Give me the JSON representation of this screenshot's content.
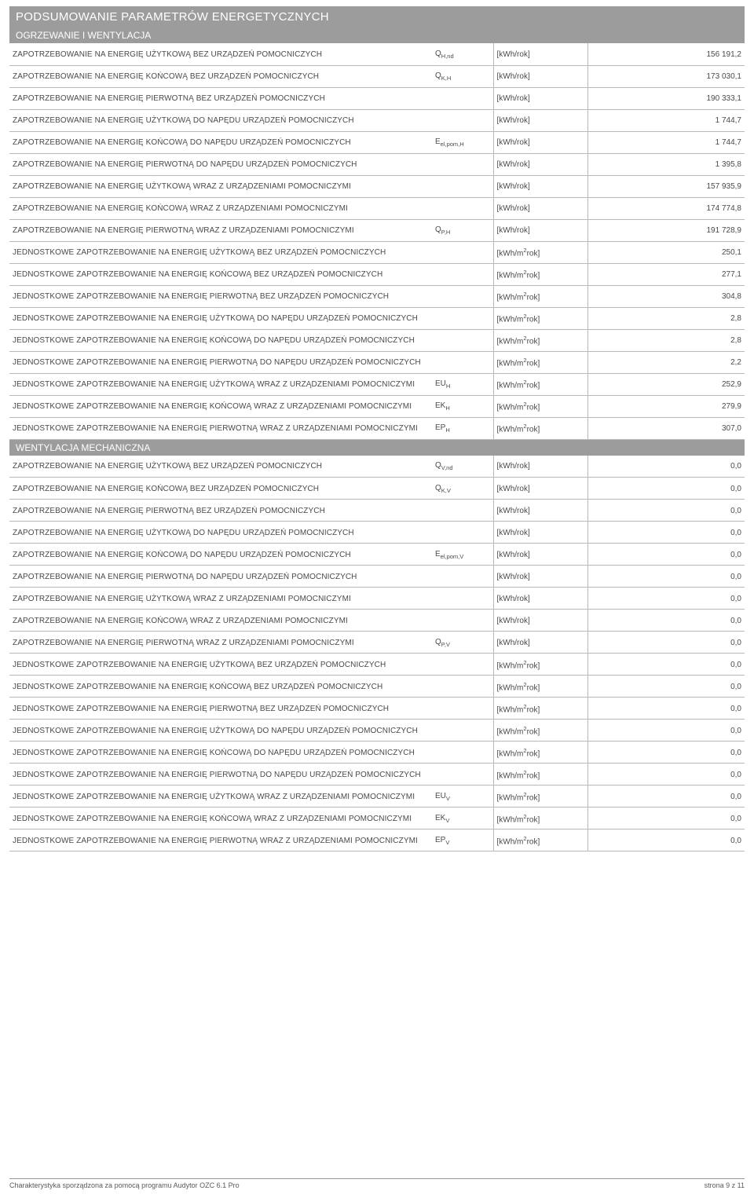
{
  "title": "PODSUMOWANIE PARAMETRÓW ENERGETYCZNYCH",
  "section1": {
    "header": "OGRZEWANIE I WENTYLACJA",
    "rows": [
      {
        "label": "ZAPOTRZEBOWANIE NA ENERGIĘ UŻYTKOWĄ BEZ URZĄDZEŃ POMOCNICZYCH",
        "symbol": "Q<sub>H,nd</sub>",
        "unit": "[kWh/rok]",
        "value": "156 191,2"
      },
      {
        "label": "ZAPOTRZEBOWANIE NA ENERGIĘ KOŃCOWĄ BEZ URZĄDZEŃ POMOCNICZYCH",
        "symbol": "Q<sub>K,H</sub>",
        "unit": "[kWh/rok]",
        "value": "173 030,1"
      },
      {
        "label": "ZAPOTRZEBOWANIE NA ENERGIĘ PIERWOTNĄ BEZ URZĄDZEŃ POMOCNICZYCH",
        "symbol": "",
        "unit": "[kWh/rok]",
        "value": "190 333,1"
      },
      {
        "label": "ZAPOTRZEBOWANIE NA ENERGIĘ UŻYTKOWĄ DO NAPĘDU URZĄDZEŃ POMOCNICZYCH",
        "symbol": "",
        "unit": "[kWh/rok]",
        "value": "1 744,7"
      },
      {
        "label": "ZAPOTRZEBOWANIE NA ENERGIĘ KOŃCOWĄ DO NAPĘDU URZĄDZEŃ POMOCNICZYCH",
        "symbol": "E<sub>el,pom,H</sub>",
        "unit": "[kWh/rok]",
        "value": "1 744,7"
      },
      {
        "label": "ZAPOTRZEBOWANIE NA ENERGIĘ PIERWOTNĄ DO NAPĘDU URZĄDZEŃ POMOCNICZYCH",
        "symbol": "",
        "unit": "[kWh/rok]",
        "value": "1 395,8"
      },
      {
        "label": "ZAPOTRZEBOWANIE NA ENERGIĘ UŻYTKOWĄ WRAZ Z URZĄDZENIAMI POMOCNICZYMI",
        "symbol": "",
        "unit": "[kWh/rok]",
        "value": "157 935,9"
      },
      {
        "label": "ZAPOTRZEBOWANIE NA ENERGIĘ KOŃCOWĄ WRAZ Z URZĄDZENIAMI POMOCNICZYMI",
        "symbol": "",
        "unit": "[kWh/rok]",
        "value": "174 774,8"
      },
      {
        "label": "ZAPOTRZEBOWANIE NA ENERGIĘ PIERWOTNĄ WRAZ Z URZĄDZENIAMI POMOCNICZYMI",
        "symbol": "Q<sub>P,H</sub>",
        "unit": "[kWh/rok]",
        "value": "191 728,9"
      },
      {
        "label": "JEDNOSTKOWE ZAPOTRZEBOWANIE NA ENERGIĘ UŻYTKOWĄ BEZ URZĄDZEŃ POMOCNICZYCH",
        "symbol": "",
        "unit": "[kWh/m<sup>2</sup>rok]",
        "value": "250,1"
      },
      {
        "label": "JEDNOSTKOWE ZAPOTRZEBOWANIE NA ENERGIĘ KOŃCOWĄ BEZ URZĄDZEŃ POMOCNICZYCH",
        "symbol": "",
        "unit": "[kWh/m<sup>2</sup>rok]",
        "value": "277,1"
      },
      {
        "label": "JEDNOSTKOWE ZAPOTRZEBOWANIE NA ENERGIĘ PIERWOTNĄ BEZ URZĄDZEŃ POMOCNICZYCH",
        "symbol": "",
        "unit": "[kWh/m<sup>2</sup>rok]",
        "value": "304,8"
      },
      {
        "label": "JEDNOSTKOWE ZAPOTRZEBOWANIE NA ENERGIĘ UŻYTKOWĄ DO NAPĘDU URZĄDZEŃ POMOCNICZYCH",
        "symbol": "",
        "unit": "[kWh/m<sup>2</sup>rok]",
        "value": "2,8"
      },
      {
        "label": "JEDNOSTKOWE ZAPOTRZEBOWANIE NA ENERGIĘ KOŃCOWĄ DO NAPĘDU URZĄDZEŃ POMOCNICZYCH",
        "symbol": "",
        "unit": "[kWh/m<sup>2</sup>rok]",
        "value": "2,8"
      },
      {
        "label": "JEDNOSTKOWE ZAPOTRZEBOWANIE NA ENERGIĘ PIERWOTNĄ DO NAPĘDU URZĄDZEŃ POMOCNICZYCH",
        "symbol": "",
        "unit": "[kWh/m<sup>2</sup>rok]",
        "value": "2,2"
      },
      {
        "label": "JEDNOSTKOWE ZAPOTRZEBOWANIE NA ENERGIĘ UŻYTKOWĄ WRAZ Z URZĄDZENIAMI POMOCNICZYMI",
        "symbol": "EU<sub>H</sub>",
        "unit": "[kWh/m<sup>2</sup>rok]",
        "value": "252,9"
      },
      {
        "label": "JEDNOSTKOWE ZAPOTRZEBOWANIE NA ENERGIĘ KOŃCOWĄ WRAZ Z URZĄDZENIAMI POMOCNICZYMI",
        "symbol": "EK<sub>H</sub>",
        "unit": "[kWh/m<sup>2</sup>rok]",
        "value": "279,9"
      },
      {
        "label": "JEDNOSTKOWE ZAPOTRZEBOWANIE NA ENERGIĘ PIERWOTNĄ WRAZ Z URZĄDZENIAMI POMOCNICZYMI",
        "symbol": "EP<sub>H</sub>",
        "unit": "[kWh/m<sup>2</sup>rok]",
        "value": "307,0"
      }
    ]
  },
  "section2": {
    "header": "WENTYLACJA MECHANICZNA",
    "rows": [
      {
        "label": "ZAPOTRZEBOWANIE NA ENERGIĘ UŻYTKOWĄ BEZ URZĄDZEŃ POMOCNICZYCH",
        "symbol": "Q<sub>V,nd</sub>",
        "unit": "[kWh/rok]",
        "value": "0,0"
      },
      {
        "label": "ZAPOTRZEBOWANIE NA ENERGIĘ KOŃCOWĄ BEZ URZĄDZEŃ POMOCNICZYCH",
        "symbol": "Q<sub>K,V</sub>",
        "unit": "[kWh/rok]",
        "value": "0,0"
      },
      {
        "label": "ZAPOTRZEBOWANIE NA ENERGIĘ PIERWOTNĄ BEZ URZĄDZEŃ POMOCNICZYCH",
        "symbol": "",
        "unit": "[kWh/rok]",
        "value": "0,0"
      },
      {
        "label": "ZAPOTRZEBOWANIE NA ENERGIĘ UŻYTKOWĄ DO NAPĘDU URZĄDZEŃ POMOCNICZYCH",
        "symbol": "",
        "unit": "[kWh/rok]",
        "value": "0,0"
      },
      {
        "label": "ZAPOTRZEBOWANIE NA ENERGIĘ KOŃCOWĄ DO NAPĘDU URZĄDZEŃ POMOCNICZYCH",
        "symbol": "E<sub>el,pom,V</sub>",
        "unit": "[kWh/rok]",
        "value": "0,0"
      },
      {
        "label": "ZAPOTRZEBOWANIE NA ENERGIĘ PIERWOTNĄ DO NAPĘDU URZĄDZEŃ POMOCNICZYCH",
        "symbol": "",
        "unit": "[kWh/rok]",
        "value": "0,0"
      },
      {
        "label": "ZAPOTRZEBOWANIE NA ENERGIĘ UŻYTKOWĄ WRAZ Z URZĄDZENIAMI POMOCNICZYMI",
        "symbol": "",
        "unit": "[kWh/rok]",
        "value": "0,0"
      },
      {
        "label": "ZAPOTRZEBOWANIE NA ENERGIĘ KOŃCOWĄ WRAZ Z URZĄDZENIAMI POMOCNICZYMI",
        "symbol": "",
        "unit": "[kWh/rok]",
        "value": "0,0"
      },
      {
        "label": "ZAPOTRZEBOWANIE NA ENERGIĘ PIERWOTNĄ WRAZ Z URZĄDZENIAMI POMOCNICZYMI",
        "symbol": "Q<sub>P,V</sub>",
        "unit": "[kWh/rok]",
        "value": "0,0"
      },
      {
        "label": "JEDNOSTKOWE ZAPOTRZEBOWANIE NA ENERGIĘ UŻYTKOWĄ BEZ URZĄDZEŃ POMOCNICZYCH",
        "symbol": "",
        "unit": "[kWh/m<sup>2</sup>rok]",
        "value": "0,0"
      },
      {
        "label": "JEDNOSTKOWE ZAPOTRZEBOWANIE NA ENERGIĘ KOŃCOWĄ BEZ URZĄDZEŃ POMOCNICZYCH",
        "symbol": "",
        "unit": "[kWh/m<sup>2</sup>rok]",
        "value": "0,0"
      },
      {
        "label": "JEDNOSTKOWE ZAPOTRZEBOWANIE NA ENERGIĘ PIERWOTNĄ BEZ URZĄDZEŃ POMOCNICZYCH",
        "symbol": "",
        "unit": "[kWh/m<sup>2</sup>rok]",
        "value": "0,0"
      },
      {
        "label": "JEDNOSTKOWE ZAPOTRZEBOWANIE NA ENERGIĘ UŻYTKOWĄ DO NAPĘDU URZĄDZEŃ POMOCNICZYCH",
        "symbol": "",
        "unit": "[kWh/m<sup>2</sup>rok]",
        "value": "0,0"
      },
      {
        "label": "JEDNOSTKOWE ZAPOTRZEBOWANIE NA ENERGIĘ KOŃCOWĄ DO NAPĘDU URZĄDZEŃ POMOCNICZYCH",
        "symbol": "",
        "unit": "[kWh/m<sup>2</sup>rok]",
        "value": "0,0"
      },
      {
        "label": "JEDNOSTKOWE ZAPOTRZEBOWANIE NA ENERGIĘ PIERWOTNĄ DO NAPĘDU URZĄDZEŃ POMOCNICZYCH",
        "symbol": "",
        "unit": "[kWh/m<sup>2</sup>rok]",
        "value": "0,0"
      },
      {
        "label": "JEDNOSTKOWE ZAPOTRZEBOWANIE NA ENERGIĘ UŻYTKOWĄ WRAZ Z URZĄDZENIAMI POMOCNICZYMI",
        "symbol": "EU<sub>V</sub>",
        "unit": "[kWh/m<sup>2</sup>rok]",
        "value": "0,0"
      },
      {
        "label": "JEDNOSTKOWE ZAPOTRZEBOWANIE NA ENERGIĘ KOŃCOWĄ WRAZ Z URZĄDZENIAMI POMOCNICZYMI",
        "symbol": "EK<sub>V</sub>",
        "unit": "[kWh/m<sup>2</sup>rok]",
        "value": "0,0"
      },
      {
        "label": "JEDNOSTKOWE ZAPOTRZEBOWANIE NA ENERGIĘ PIERWOTNĄ WRAZ Z URZĄDZENIAMI POMOCNICZYMI",
        "symbol": "EP<sub>V</sub>",
        "unit": "[kWh/m<sup>2</sup>rok]",
        "value": "0,0"
      }
    ]
  },
  "footer": {
    "left": "Charakterystyka sporządzona za pomocą programu Audytor OZC 6.1 Pro",
    "right": "strona 9 z 11"
  },
  "colors": {
    "header_bg": "#9c9c9c",
    "header_fg": "#ffffff",
    "text": "#4a4a4a",
    "border": "#b8b8b8",
    "bg": "#ffffff"
  }
}
